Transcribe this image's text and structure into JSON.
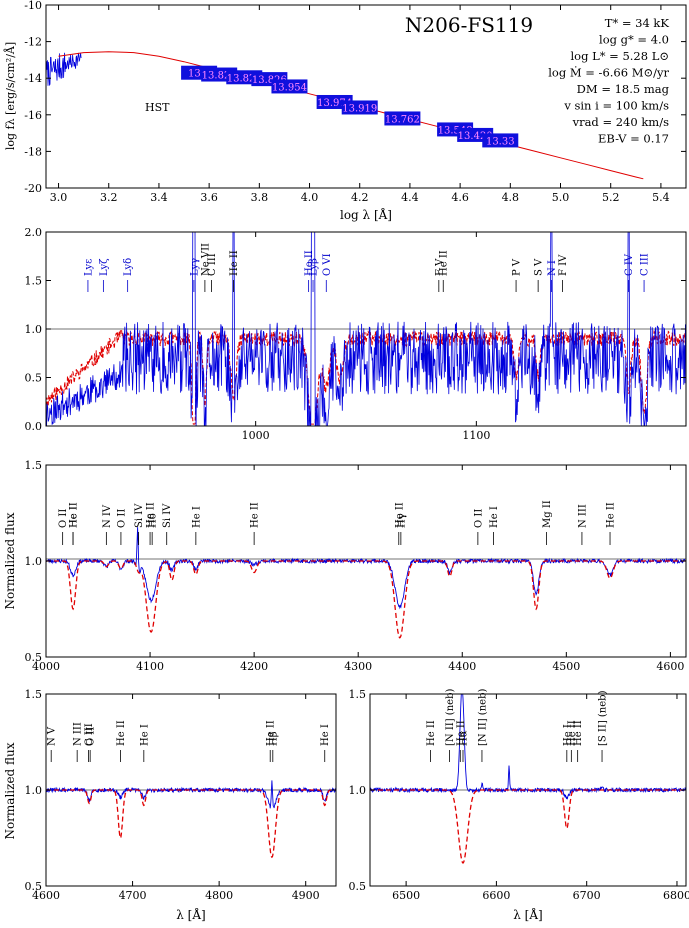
{
  "chart_data": [
    {
      "type": "line",
      "title": "N206-FS119",
      "xlabel": "log λ [Å]",
      "ylabel": "log fλ [erg/s/cm²/Å]",
      "xlim": [
        2.95,
        5.5
      ],
      "ylim": [
        -20,
        -10
      ],
      "xticks": [
        "3.0",
        "3.2",
        "3.4",
        "3.6",
        "3.8",
        "4.0",
        "4.2",
        "4.4",
        "4.6",
        "4.8",
        "5.0",
        "5.2",
        "5.4"
      ],
      "yticks": [
        "-20",
        "-18",
        "-16",
        "-14",
        "-12",
        "-10"
      ],
      "annotation": "HST",
      "params": [
        "T* = 34 kK",
        "log g* = 4.0",
        "log L* = 5.28 L⊙",
        "log Ṁ = -6.66 M⊙/yr",
        "DM = 18.5 mag",
        "v sin i = 100 km/s",
        "vrad = 240 km/s",
        "EB-V = 0.17"
      ],
      "photometry": [
        {
          "x": 3.56,
          "y": -13.7,
          "label": "13.8"
        },
        {
          "x": 3.64,
          "y": -13.8,
          "label": "13.829"
        },
        {
          "x": 3.74,
          "y": -13.95,
          "label": "13.826"
        },
        {
          "x": 3.84,
          "y": -14.05,
          "label": "13.826"
        },
        {
          "x": 3.92,
          "y": -14.45,
          "label": "13.954"
        },
        {
          "x": 4.1,
          "y": -15.3,
          "label": "13.974"
        },
        {
          "x": 4.2,
          "y": -15.6,
          "label": "13.919"
        },
        {
          "x": 4.37,
          "y": -16.2,
          "label": "13.762"
        },
        {
          "x": 4.58,
          "y": -16.8,
          "label": "13.548"
        },
        {
          "x": 4.66,
          "y": -17.1,
          "label": "13.420"
        },
        {
          "x": 4.76,
          "y": -17.4,
          "label": "13.33"
        }
      ],
      "series": [
        {
          "values": [
            [
              3.0,
              -12.8
            ],
            [
              3.1,
              -12.6
            ],
            [
              3.2,
              -12.55
            ],
            [
              3.3,
              -12.6
            ],
            [
              3.4,
              -12.8
            ],
            [
              3.5,
              -13.1
            ],
            [
              3.6,
              -13.45
            ],
            [
              3.7,
              -13.8
            ],
            [
              3.8,
              -14.15
            ],
            [
              3.9,
              -14.5
            ],
            [
              4.0,
              -14.85
            ],
            [
              4.1,
              -15.2
            ],
            [
              4.2,
              -15.55
            ],
            [
              4.3,
              -15.9
            ],
            [
              4.4,
              -16.25
            ],
            [
              4.5,
              -16.6
            ],
            [
              4.6,
              -16.95
            ],
            [
              4.7,
              -17.3
            ],
            [
              4.8,
              -17.65
            ],
            [
              4.9,
              -18.0
            ],
            [
              5.0,
              -18.35
            ],
            [
              5.1,
              -18.7
            ],
            [
              5.2,
              -19.05
            ],
            [
              5.3,
              -19.4
            ],
            [
              5.33,
              -19.5
            ]
          ]
        }
      ]
    },
    {
      "type": "line",
      "xlim": [
        905,
        1195
      ],
      "ylim": [
        0,
        2
      ],
      "xticks": [
        "1000",
        "1100"
      ],
      "yticks": [
        "0.0",
        "0.5",
        "1.0",
        "1.5",
        "2.0"
      ],
      "reference_line": 1.0,
      "lines": [
        {
          "x": 924,
          "label": "Lyε",
          "color": "blue"
        },
        {
          "x": 931,
          "label": "Lyζ",
          "color": "blue"
        },
        {
          "x": 942,
          "label": "Lyδ",
          "color": "blue"
        },
        {
          "x": 972,
          "label": "Lyγ",
          "color": "blue"
        },
        {
          "x": 977,
          "label": "Ne VII",
          "color": "black"
        },
        {
          "x": 980,
          "label": "C III",
          "color": "black"
        },
        {
          "x": 990,
          "label": "He II",
          "color": "black"
        },
        {
          "x": 1024,
          "label": "He II",
          "color": "blue"
        },
        {
          "x": 1026,
          "label": "Lyβ",
          "color": "blue"
        },
        {
          "x": 1032,
          "label": "O VI",
          "color": "blue"
        },
        {
          "x": 1083,
          "label": "F V",
          "color": "black"
        },
        {
          "x": 1085,
          "label": "He II",
          "color": "black"
        },
        {
          "x": 1118,
          "label": "P V",
          "color": "black"
        },
        {
          "x": 1128,
          "label": "S V",
          "color": "black"
        },
        {
          "x": 1134,
          "label": "N I",
          "color": "blue"
        },
        {
          "x": 1139,
          "label": "F IV",
          "color": "black"
        },
        {
          "x": 1169,
          "label": "C IV",
          "color": "blue"
        },
        {
          "x": 1176,
          "label": "C III",
          "color": "blue"
        }
      ]
    },
    {
      "type": "line",
      "xlim": [
        4000,
        4615
      ],
      "ylim": [
        0.5,
        1.5
      ],
      "xticks": [
        "4000",
        "4100",
        "4200",
        "4300",
        "4400",
        "4500",
        "4600"
      ],
      "yticks": [
        "0.5",
        "1.0",
        "1.5"
      ],
      "ylabel": "Normalized flux",
      "reference_line": 1.0,
      "lines": [
        {
          "x": 4016,
          "label": "O II"
        },
        {
          "x": 4026,
          "label": "He I"
        },
        {
          "x": 4026,
          "label": "He II"
        },
        {
          "x": 4058,
          "label": "N IV"
        },
        {
          "x": 4072,
          "label": "O II"
        },
        {
          "x": 4089,
          "label": "Si IV"
        },
        {
          "x": 4100,
          "label": "He II"
        },
        {
          "x": 4102,
          "label": "Hδ"
        },
        {
          "x": 4116,
          "label": "Si IV"
        },
        {
          "x": 4144,
          "label": "He I"
        },
        {
          "x": 4200,
          "label": "He II"
        },
        {
          "x": 4339,
          "label": "He II"
        },
        {
          "x": 4341,
          "label": "Hγ"
        },
        {
          "x": 4415,
          "label": "O II"
        },
        {
          "x": 4430,
          "label": "He I"
        },
        {
          "x": 4481,
          "label": "Mg II"
        },
        {
          "x": 4515,
          "label": "N III"
        },
        {
          "x": 4542,
          "label": "He II"
        }
      ]
    },
    {
      "type": "line",
      "xlim": [
        4600,
        4935
      ],
      "ylim": [
        0.5,
        1.5
      ],
      "xticks": [
        "4600",
        "4700",
        "4800",
        "4900"
      ],
      "yticks": [
        "0.5",
        "1.0",
        "1.5"
      ],
      "xlabel": "λ [Å]",
      "ylabel": "Normalized flux",
      "reference_line": 1.0,
      "lines": [
        {
          "x": 4606,
          "label": "N V"
        },
        {
          "x": 4636,
          "label": "N III"
        },
        {
          "x": 4649,
          "label": "C III"
        },
        {
          "x": 4651,
          "label": "O II"
        },
        {
          "x": 4686,
          "label": "He II"
        },
        {
          "x": 4713,
          "label": "He I"
        },
        {
          "x": 4859,
          "label": "He II"
        },
        {
          "x": 4862,
          "label": "Hβ"
        },
        {
          "x": 4922,
          "label": "He I"
        }
      ]
    },
    {
      "type": "line",
      "xlim": [
        6460,
        6810
      ],
      "ylim": [
        0.5,
        1.5
      ],
      "xticks": [
        "6500",
        "6600",
        "6700",
        "6800"
      ],
      "yticks": [
        "0.5",
        "1.0",
        "1.5"
      ],
      "xlabel": "λ [Å]",
      "reference_line": 1.0,
      "lines": [
        {
          "x": 6527,
          "label": "He II"
        },
        {
          "x": 6548,
          "label": "[N II] (neb)"
        },
        {
          "x": 6560,
          "label": "He II"
        },
        {
          "x": 6563,
          "label": "Hα"
        },
        {
          "x": 6584,
          "label": "[N II] (neb)"
        },
        {
          "x": 6678,
          "label": "He I"
        },
        {
          "x": 6683,
          "label": "He II"
        },
        {
          "x": 6690,
          "label": "He II"
        },
        {
          "x": 6717,
          "label": "[S II] (neb)"
        }
      ]
    }
  ]
}
